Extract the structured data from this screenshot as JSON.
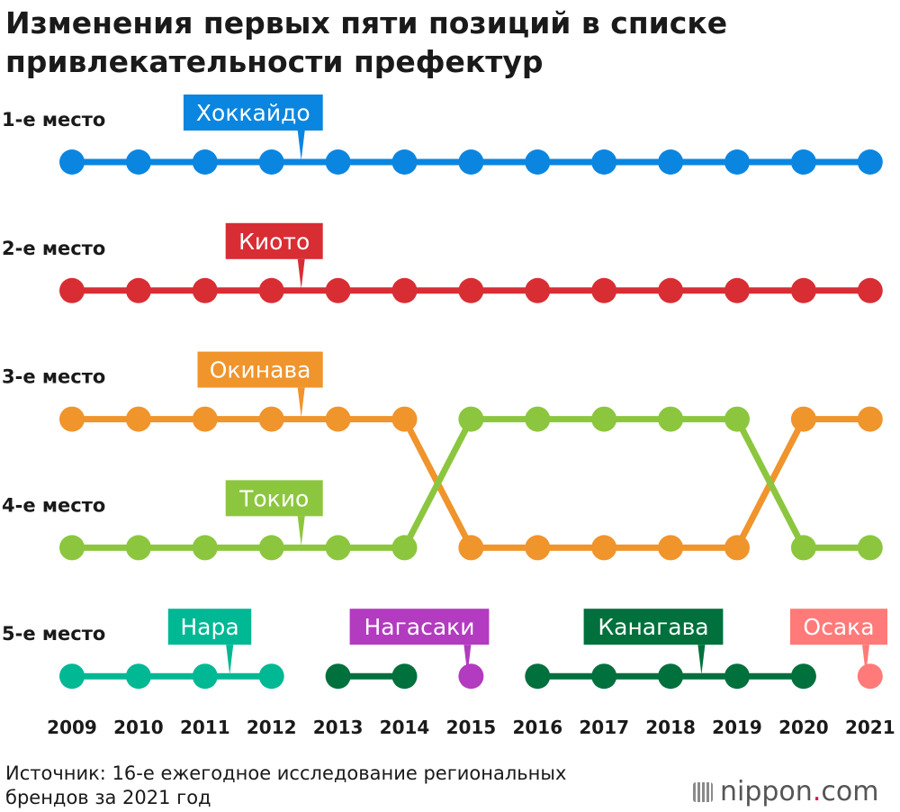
{
  "title_line1": "Изменения первых пяти позиций в списке",
  "title_line2": "привлекательности префектур",
  "source_line1": "Источник: 16-е ежегодное исследование региональных",
  "source_line2": "брендов за 2021 год",
  "brand": {
    "name": "nippon",
    "dot": ".",
    "tld": "com",
    "icon": "nippon-logo-icon"
  },
  "chart_data": {
    "type": "line",
    "x": [
      2009,
      2010,
      2011,
      2012,
      2013,
      2014,
      2015,
      2016,
      2017,
      2018,
      2019,
      2020,
      2021
    ],
    "rank_labels": [
      "1-е место",
      "2-е место",
      "3-е место",
      "4-е место",
      "5-е место"
    ],
    "series": [
      {
        "name": "Хоккайдо",
        "color": "#0a86e0",
        "ranks": [
          1,
          1,
          1,
          1,
          1,
          1,
          1,
          1,
          1,
          1,
          1,
          1,
          1
        ],
        "label_near_year": 2012
      },
      {
        "name": "Киото",
        "color": "#d92d34",
        "ranks": [
          2,
          2,
          2,
          2,
          2,
          2,
          2,
          2,
          2,
          2,
          2,
          2,
          2
        ],
        "label_near_year": 2012
      },
      {
        "name": "Окинава",
        "color": "#f0942c",
        "ranks": [
          3,
          3,
          3,
          3,
          3,
          3,
          4,
          4,
          4,
          4,
          4,
          3,
          3
        ],
        "label_near_year": 2012
      },
      {
        "name": "Токио",
        "color": "#8cc63e",
        "ranks": [
          4,
          4,
          4,
          4,
          4,
          4,
          3,
          3,
          3,
          3,
          3,
          4,
          4
        ],
        "label_near_year": 2012
      }
    ],
    "fifth_place": [
      {
        "name": "Нара",
        "color": "#00b894",
        "years": [
          2009,
          2010,
          2011,
          2012
        ],
        "label_near_year": 2011
      },
      {
        "name": "Канагава",
        "color": "#00703c",
        "years": [
          2013,
          2014
        ],
        "label_near_year": null
      },
      {
        "name": "Нагасаки",
        "color": "#b23bbf",
        "years": [
          2015
        ],
        "label_near_year": 2015
      },
      {
        "name": "Канагава",
        "color": "#00703c",
        "years": [
          2016,
          2017,
          2018,
          2019,
          2020
        ],
        "label_near_year": 2018
      },
      {
        "name": "Осака",
        "color": "#ff7a78",
        "years": [
          2021
        ],
        "label_near_year": 2021
      }
    ]
  }
}
